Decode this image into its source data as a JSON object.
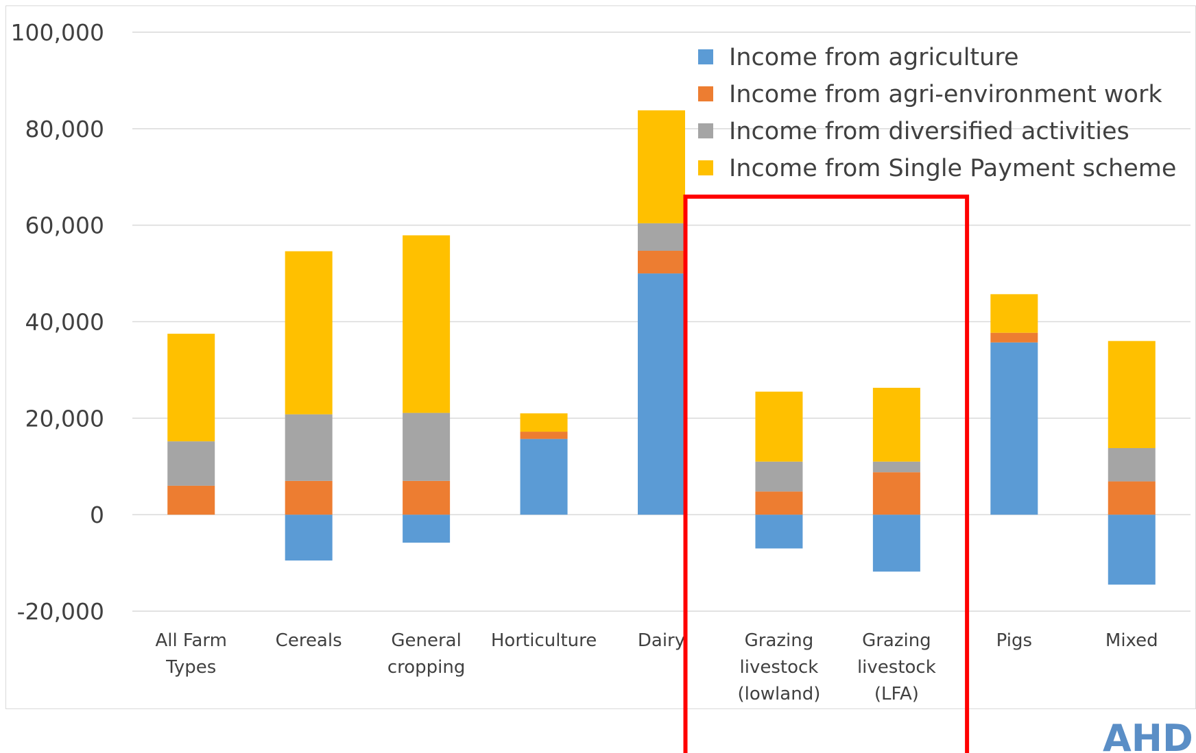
{
  "chart_data": {
    "type": "bar",
    "stacked": true,
    "categories": [
      [
        "All Farm",
        "Types"
      ],
      [
        "Cereals"
      ],
      [
        "General",
        "cropping"
      ],
      [
        "Horticulture"
      ],
      [
        "Dairy"
      ],
      [
        "Grazing",
        "livestock",
        "(lowland)"
      ],
      [
        "Grazing",
        "livestock",
        "(LFA)"
      ],
      [
        "Pigs"
      ],
      [
        "Mixed"
      ]
    ],
    "series": [
      {
        "name": "Income from agriculture",
        "color": "#5b9bd5",
        "values": [
          0,
          -9500,
          -5800,
          15700,
          50000,
          -7000,
          -11800,
          35700,
          -14500
        ]
      },
      {
        "name": "Income from agri-environment work",
        "color": "#ed7d31",
        "values": [
          6000,
          7000,
          7000,
          1500,
          4700,
          4800,
          8800,
          2000,
          6900
        ]
      },
      {
        "name": "Income from diversified activities",
        "color": "#a5a5a5",
        "values": [
          9200,
          13800,
          14100,
          0,
          5700,
          6200,
          2200,
          0,
          6900
        ]
      },
      {
        "name": "Income from Single Payment scheme",
        "color": "#ffc000",
        "values": [
          22300,
          33800,
          36800,
          3800,
          23400,
          14500,
          15300,
          8000,
          22200
        ]
      }
    ],
    "yticks": [
      "-20,000",
      "0",
      "20,000",
      "40,000",
      "60,000",
      "80,000",
      "100,000"
    ],
    "ylim": [
      -20000,
      100000
    ],
    "grid": true,
    "legend_position": "top-right",
    "highlight": {
      "categories": [
        "Grazing livestock (lowland)",
        "Grazing livestock (LFA)"
      ],
      "color": "#ff0000"
    }
  },
  "logo": {
    "text": "AHDB"
  }
}
